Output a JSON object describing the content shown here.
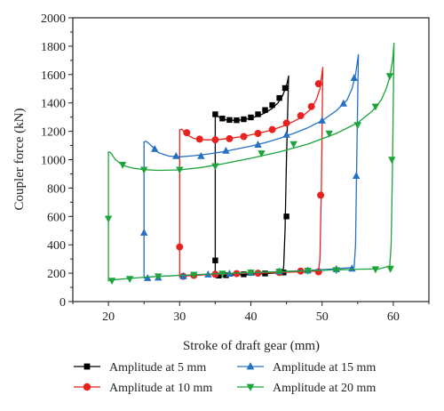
{
  "chart_data": {
    "type": "line",
    "xlabel": "Stroke of draft gear (mm)",
    "ylabel": "Coupler force (kN)",
    "xlim": [
      15,
      65
    ],
    "ylim": [
      0,
      2000
    ],
    "x_ticks": [
      20,
      30,
      40,
      50,
      60
    ],
    "y_ticks": [
      0,
      200,
      400,
      600,
      800,
      1000,
      1200,
      1400,
      1600,
      1800,
      2000
    ],
    "grid": false,
    "legend_position": "bottom",
    "series": [
      {
        "name": "Amplitude at 5 mm",
        "color": "#000000",
        "marker": "square",
        "line_x": [
          35,
          35,
          35.3,
          36,
          37,
          38,
          39,
          40,
          41,
          42,
          43,
          43.8,
          44.4,
          44.8,
          45.1,
          45.3,
          45.3,
          45,
          44.8,
          44.6,
          44.4,
          43,
          40,
          37,
          35.5,
          35.1,
          35
        ],
        "line_y": [
          185,
          1310,
          1310,
          1285,
          1278,
          1278,
          1282,
          1292,
          1308,
          1330,
          1362,
          1400,
          1445,
          1495,
          1540,
          1590,
          1590,
          1000,
          500,
          240,
          205,
          200,
          192,
          187,
          184,
          183,
          185
        ],
        "points_x": [
          35,
          35,
          36,
          37,
          38,
          39,
          40,
          41,
          42,
          43,
          44,
          44.8,
          45,
          44.6,
          42,
          39,
          36.5,
          35.5
        ],
        "points_y": [
          290,
          1320,
          1290,
          1280,
          1278,
          1285,
          1298,
          1320,
          1350,
          1385,
          1435,
          1505,
          600,
          205,
          198,
          192,
          186,
          183
        ]
      },
      {
        "name": "Amplitude at 10 mm",
        "color": "#e8231f",
        "marker": "circle",
        "line_x": [
          30,
          30,
          30.3,
          31,
          32,
          33.5,
          35,
          37,
          39,
          41,
          43,
          45,
          47,
          48.5,
          49.2,
          49.7,
          50.1,
          50.1,
          49.9,
          49.7,
          49.5,
          47,
          43,
          38,
          34,
          31,
          30.2,
          30
        ],
        "line_y": [
          170,
          1210,
          1215,
          1175,
          1150,
          1140,
          1140,
          1150,
          1165,
          1185,
          1210,
          1245,
          1295,
          1360,
          1425,
          1500,
          1650,
          1650,
          800,
          300,
          215,
          210,
          203,
          196,
          190,
          181,
          178,
          170
        ],
        "points_x": [
          30,
          31,
          32.8,
          35,
          37,
          39,
          41,
          43,
          45,
          47,
          48.5,
          49.5,
          49.8,
          49.5,
          47,
          44,
          41,
          38,
          35,
          32,
          30.5
        ],
        "points_y": [
          385,
          1190,
          1145,
          1140,
          1148,
          1163,
          1185,
          1212,
          1258,
          1310,
          1375,
          1535,
          750,
          210,
          215,
          205,
          200,
          197,
          192,
          185,
          178
        ]
      },
      {
        "name": "Amplitude at 15 mm",
        "color": "#2670c4",
        "marker": "triangle-up",
        "line_x": [
          25,
          25,
          25.3,
          26,
          27,
          28.5,
          30,
          32,
          34,
          36,
          38,
          40,
          42,
          44,
          46,
          48,
          50,
          52,
          53.5,
          54.2,
          54.7,
          55.1,
          55.1,
          54.9,
          54.7,
          54.5,
          50,
          45,
          40,
          35,
          30,
          26,
          25.2,
          25
        ],
        "line_y": [
          165,
          1125,
          1130,
          1100,
          1050,
          1025,
          1020,
          1028,
          1040,
          1055,
          1075,
          1095,
          1120,
          1150,
          1185,
          1225,
          1275,
          1345,
          1420,
          1500,
          1600,
          1740,
          1740,
          1100,
          400,
          240,
          225,
          213,
          203,
          195,
          185,
          175,
          168,
          165
        ],
        "points_x": [
          25,
          26.5,
          29.5,
          33,
          36.5,
          41,
          45,
          50,
          53,
          54.5,
          54.8,
          54.2,
          52,
          48,
          44,
          40,
          37,
          34,
          30.5,
          27,
          25.5
        ],
        "points_y": [
          485,
          1075,
          1025,
          1025,
          1062,
          1105,
          1175,
          1275,
          1395,
          1575,
          885,
          232,
          228,
          218,
          212,
          202,
          196,
          190,
          178,
          168,
          165
        ]
      },
      {
        "name": "Amplitude at 20 mm",
        "color": "#1ea43b",
        "marker": "triangle-down",
        "line_x": [
          20,
          20,
          20.3,
          21,
          22,
          23.5,
          25,
          27,
          30,
          33,
          36,
          40,
          44,
          48,
          52,
          55,
          57,
          58.3,
          59,
          59.5,
          59.9,
          60.1,
          60.1,
          59.9,
          59.7,
          59.5,
          58,
          55,
          50,
          45,
          40,
          35,
          30,
          25,
          21,
          20.2,
          20
        ],
        "line_y": [
          145,
          1055,
          1050,
          1000,
          960,
          940,
          930,
          925,
          928,
          945,
          970,
          1010,
          1055,
          1110,
          1185,
          1260,
          1340,
          1420,
          1500,
          1580,
          1700,
          1820,
          1820,
          1000,
          400,
          250,
          230,
          228,
          220,
          212,
          205,
          195,
          185,
          172,
          155,
          150,
          145
        ],
        "points_x": [
          20,
          22,
          25,
          30,
          35,
          41.5,
          46,
          51,
          55,
          57.5,
          59.5,
          59.8,
          59.6,
          57.5,
          52,
          48,
          44,
          40,
          36,
          32,
          27,
          23,
          20.5
        ],
        "points_y": [
          585,
          965,
          930,
          930,
          955,
          1045,
          1110,
          1185,
          1245,
          1375,
          1590,
          1000,
          232,
          228,
          222,
          218,
          212,
          205,
          198,
          190,
          178,
          160,
          148
        ]
      }
    ]
  }
}
